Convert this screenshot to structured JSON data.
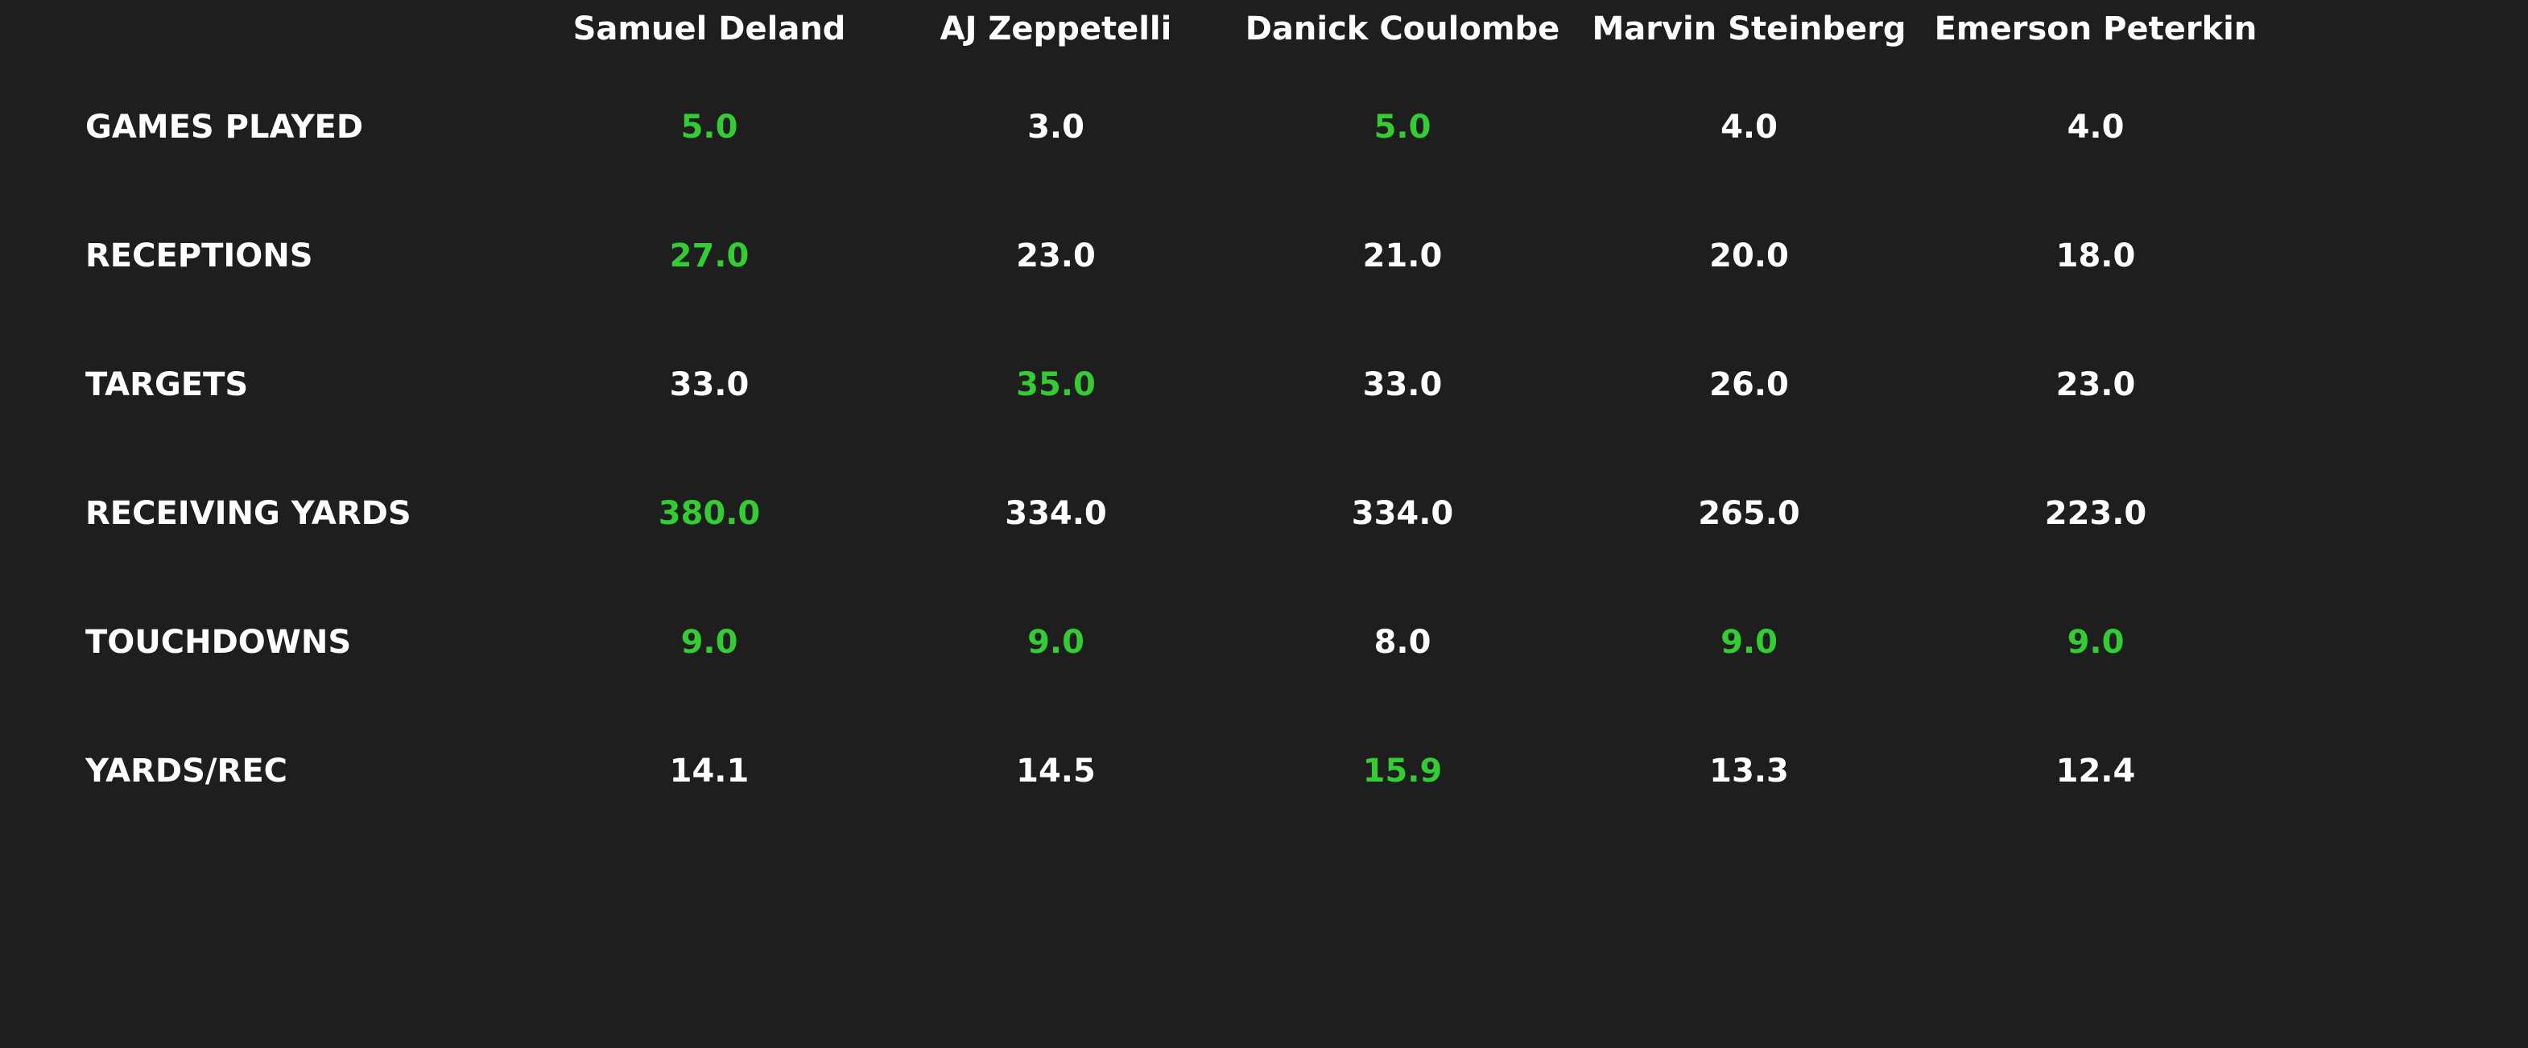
{
  "table": {
    "columns": [
      "Samuel Deland",
      "AJ Zeppetelli",
      "Danick Coulombe",
      "Marvin Steinberg",
      "Emerson Peterkin"
    ],
    "rows": [
      {
        "label": "GAMES PLAYED",
        "values": [
          "5.0",
          "3.0",
          "5.0",
          "4.0",
          "4.0"
        ]
      },
      {
        "label": "RECEPTIONS",
        "values": [
          "27.0",
          "23.0",
          "21.0",
          "20.0",
          "18.0"
        ]
      },
      {
        "label": "TARGETS",
        "values": [
          "33.0",
          "35.0",
          "33.0",
          "26.0",
          "23.0"
        ]
      },
      {
        "label": "RECEIVING YARDS",
        "values": [
          "380.0",
          "334.0",
          "334.0",
          "265.0",
          "223.0"
        ]
      },
      {
        "label": "TOUCHDOWNS",
        "values": [
          "9.0",
          "9.0",
          "8.0",
          "9.0",
          "9.0"
        ]
      },
      {
        "label": "YARDS/REC",
        "values": [
          "14.1",
          "14.5",
          "15.9",
          "13.3",
          "12.4"
        ]
      }
    ],
    "text_color": "#ffffff",
    "highlight_color": "#33cc33",
    "background": "#1e1e1e"
  }
}
